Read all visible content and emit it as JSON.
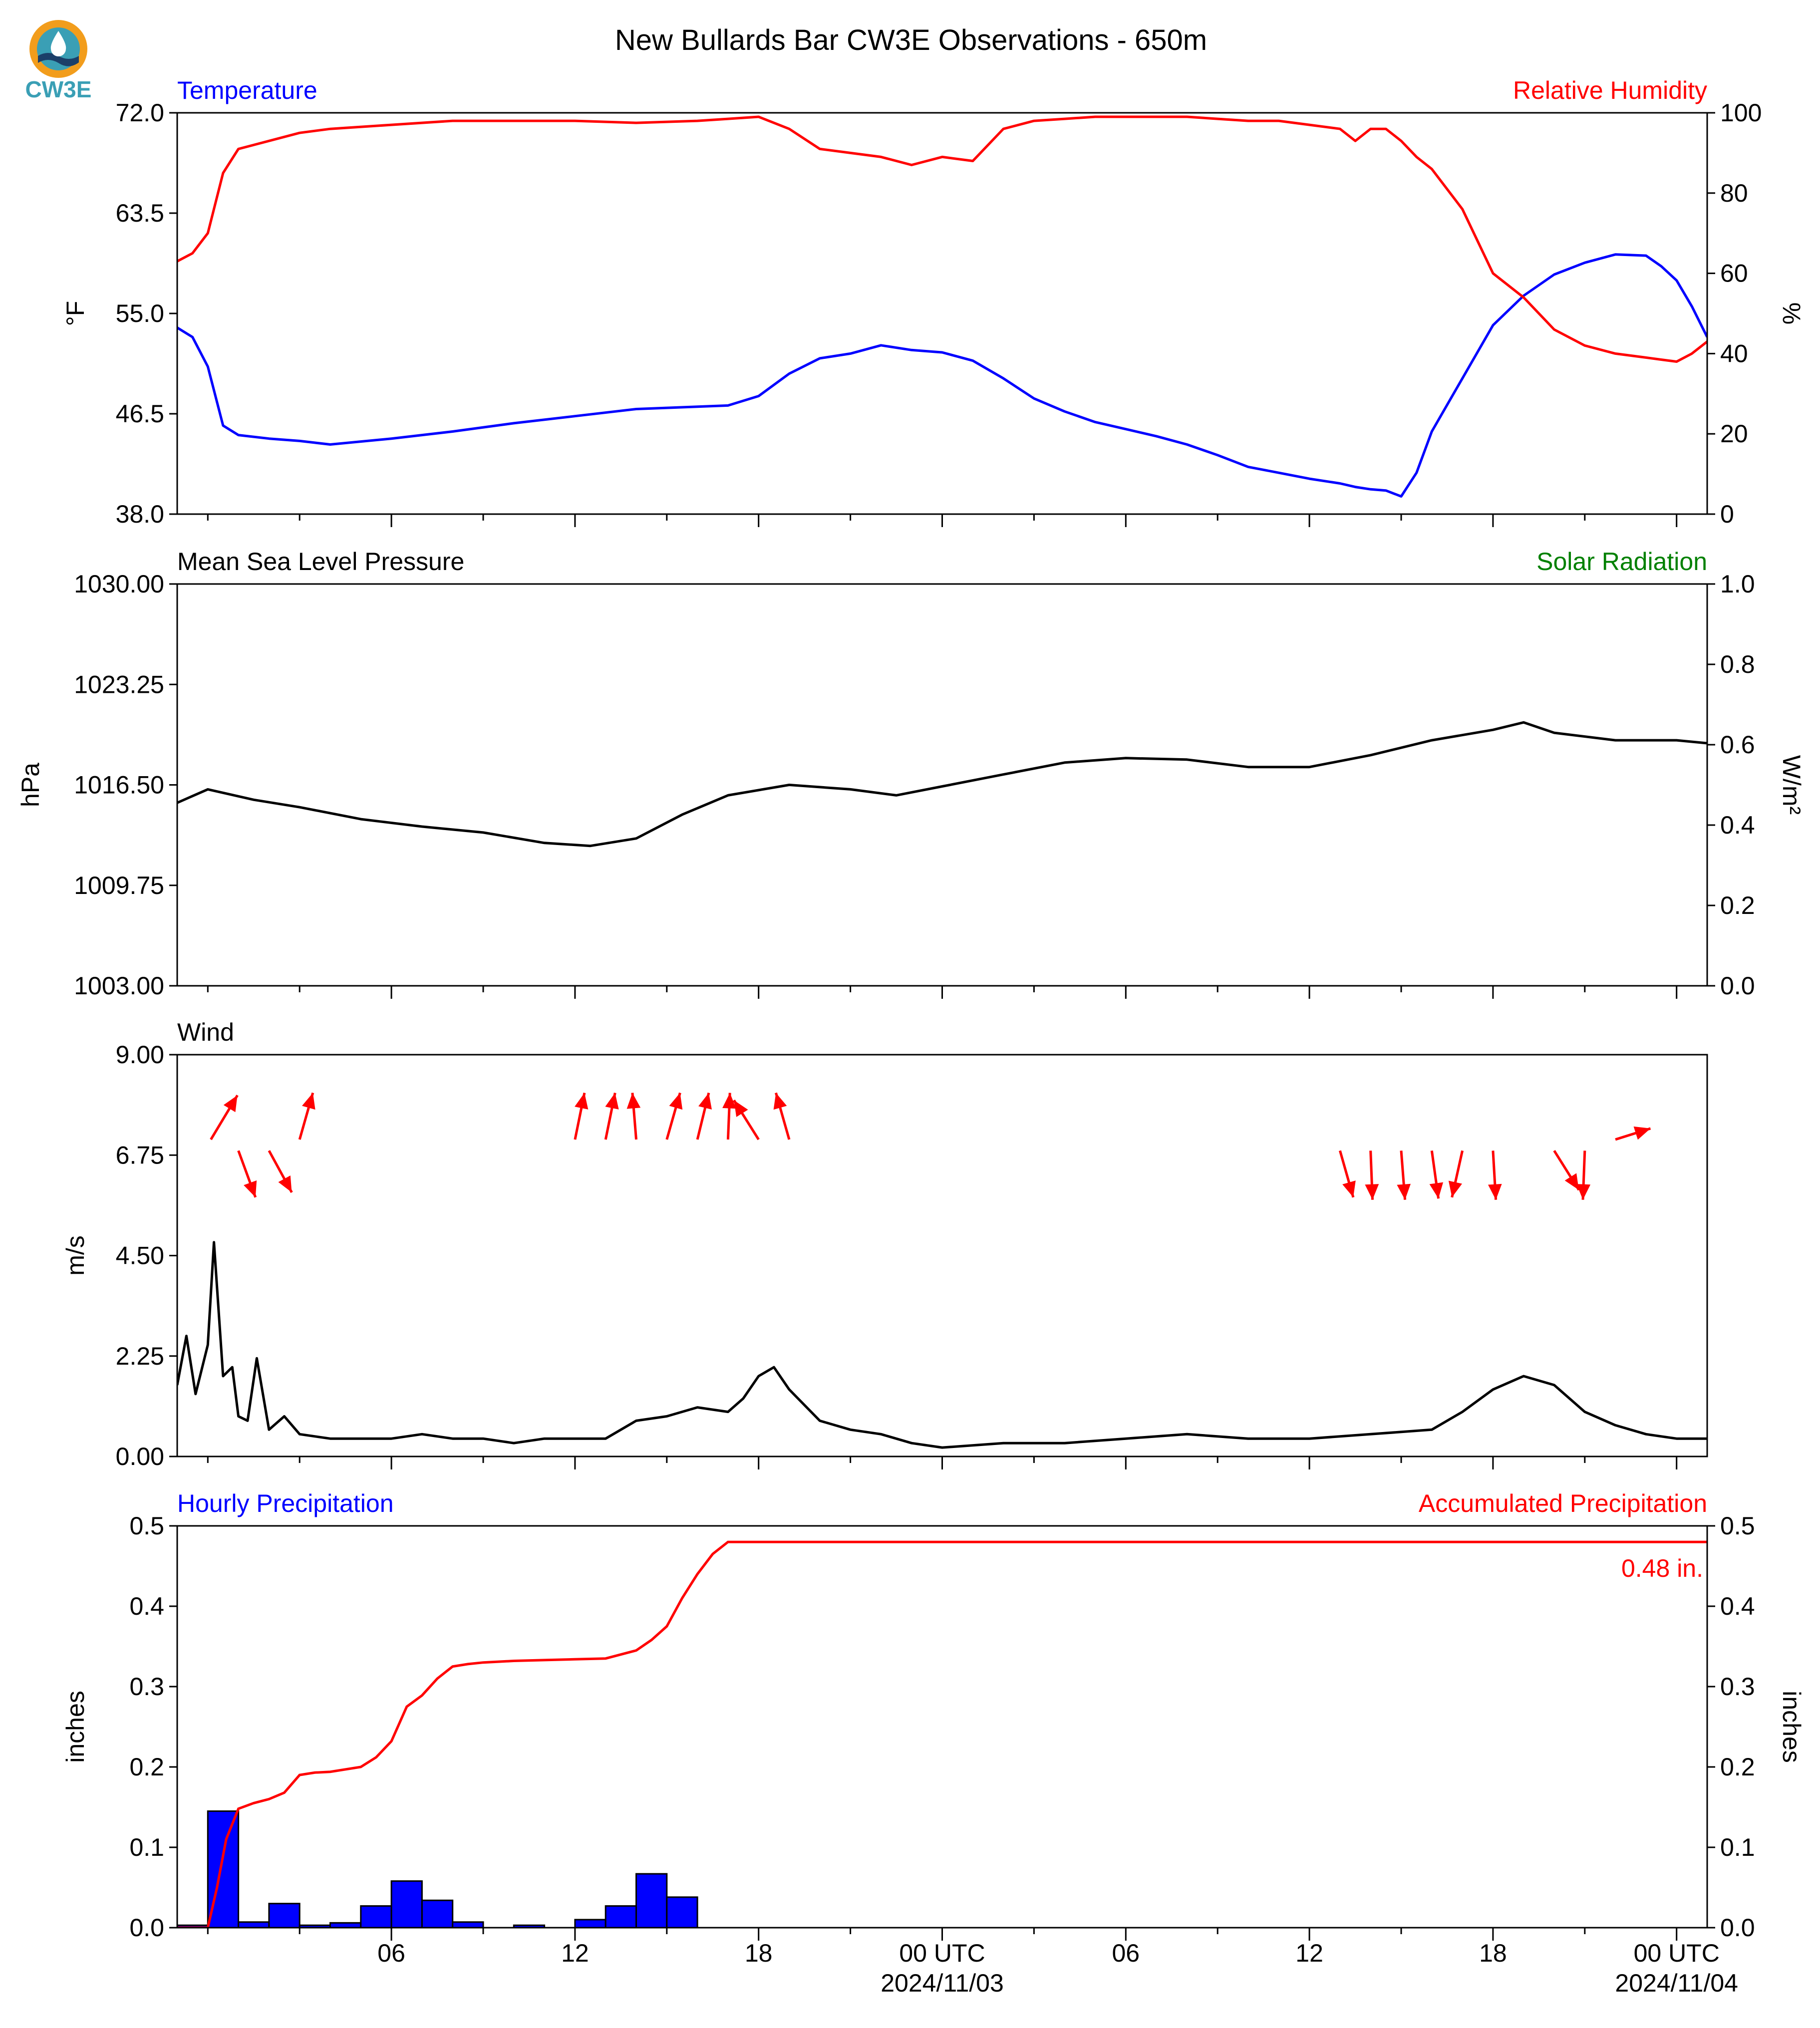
{
  "logo": {
    "label": "CW3E",
    "colors": [
      "#3a9fb5",
      "#f29d1c",
      "#1b3f69"
    ]
  },
  "title": "New Bullards Bar CW3E Observations - 650m",
  "x_axis": {
    "ticks": [
      {
        "hour": 6,
        "label": "06",
        "sub": ""
      },
      {
        "hour": 12,
        "label": "12",
        "sub": ""
      },
      {
        "hour": 18,
        "label": "18",
        "sub": ""
      },
      {
        "hour": 24,
        "label": "00 UTC",
        "sub": "2024/11/03"
      },
      {
        "hour": 30,
        "label": "06",
        "sub": ""
      },
      {
        "hour": 36,
        "label": "12",
        "sub": ""
      },
      {
        "hour": 42,
        "label": "18",
        "sub": ""
      },
      {
        "hour": 48,
        "label": "00 UTC",
        "sub": "2024/11/04"
      }
    ],
    "minor_hours": [
      0,
      3,
      9,
      15,
      21,
      27,
      33,
      39,
      45
    ]
  },
  "chart_data": [
    {
      "type": "line",
      "panel": "temperature-humidity",
      "left_title": "Temperature",
      "left_title_color": "#0000ff",
      "right_title": "Relative Humidity",
      "right_title_color": "#ff0000",
      "ylabel": "°F",
      "y2label": "%",
      "ylim": [
        38.0,
        72.0
      ],
      "yticks": [
        "72.0",
        "63.5",
        "55.0",
        "46.5",
        "38.0"
      ],
      "y2lim": [
        0,
        100
      ],
      "y2ticks": [
        "100",
        "80",
        "60",
        "40",
        "20",
        "0"
      ],
      "x": [
        -1.0,
        -0.5,
        0.0,
        0.5,
        1.0,
        2.0,
        3.0,
        4.0,
        6.0,
        8.0,
        10.0,
        12.0,
        14.0,
        16.0,
        17.0,
        18.0,
        19.0,
        20.0,
        21.0,
        22.0,
        23.0,
        24.0,
        25.0,
        26.0,
        27.0,
        28.0,
        29.0,
        30.0,
        31.0,
        32.0,
        33.0,
        34.0,
        35.0,
        36.0,
        37.0,
        37.5,
        38.0,
        38.5,
        39.0,
        39.5,
        40.0,
        41.0,
        42.0,
        43.0,
        44.0,
        45.0,
        46.0,
        47.0,
        47.5,
        48.0,
        48.5,
        49.0
      ],
      "series": [
        {
          "name": "Temperature",
          "color": "#0000ff",
          "axis": "left",
          "values": [
            53.8,
            53.0,
            50.5,
            45.5,
            44.7,
            44.4,
            44.2,
            43.9,
            44.4,
            45.0,
            45.7,
            46.3,
            46.9,
            47.1,
            47.2,
            48.0,
            49.9,
            51.2,
            51.6,
            52.3,
            51.9,
            51.7,
            51.0,
            49.5,
            47.8,
            46.7,
            45.8,
            45.2,
            44.6,
            43.9,
            43.0,
            42.0,
            41.5,
            41.0,
            40.6,
            40.3,
            40.1,
            40.0,
            39.5,
            41.5,
            45.0,
            49.5,
            54.0,
            56.5,
            58.3,
            59.3,
            60.0,
            59.9,
            59.0,
            57.8,
            55.6,
            53.0
          ]
        },
        {
          "name": "Relative Humidity",
          "color": "#ff0000",
          "axis": "right",
          "values": [
            63,
            65,
            70,
            85,
            91,
            93,
            95,
            96,
            97,
            98,
            98,
            98,
            97.5,
            98,
            98.5,
            99,
            96,
            91,
            90,
            89,
            87,
            89,
            88,
            96,
            98,
            98.5,
            99,
            99,
            99,
            99,
            98.5,
            98,
            98,
            97,
            96,
            93,
            96,
            96,
            93,
            89,
            86,
            76,
            60,
            54,
            46,
            42,
            40,
            39,
            38.5,
            38,
            40,
            43
          ]
        }
      ]
    },
    {
      "type": "line",
      "panel": "pressure-solar",
      "left_title": "Mean Sea Level Pressure",
      "left_title_color": "#000000",
      "right_title": "Solar Radiation",
      "right_title_color": "#008000",
      "ylabel": "hPa",
      "y2label": "W/m²",
      "ylim": [
        1003.0,
        1030.0
      ],
      "yticks": [
        "1030.00",
        "1023.25",
        "1016.50",
        "1009.75",
        "1003.00"
      ],
      "y2lim": [
        0.0,
        1.0
      ],
      "y2ticks": [
        "1.0",
        "0.8",
        "0.6",
        "0.4",
        "0.2",
        "0.0"
      ],
      "x": [
        -1.0,
        0.0,
        1.5,
        3.0,
        5.0,
        7.0,
        9.0,
        11.0,
        12.5,
        14.0,
        15.5,
        17.0,
        19.0,
        21.0,
        22.5,
        24.0,
        26.0,
        28.0,
        30.0,
        32.0,
        34.0,
        36.0,
        38.0,
        40.0,
        42.0,
        43.0,
        44.0,
        46.0,
        48.0,
        49.0
      ],
      "series": [
        {
          "name": "Pressure",
          "color": "#000000",
          "axis": "left",
          "values": [
            1015.3,
            1016.2,
            1015.5,
            1015.0,
            1014.2,
            1013.7,
            1013.3,
            1012.6,
            1012.4,
            1012.9,
            1014.5,
            1015.8,
            1016.5,
            1016.2,
            1015.8,
            1016.4,
            1017.2,
            1018.0,
            1018.3,
            1018.2,
            1017.7,
            1017.7,
            1018.5,
            1019.5,
            1020.2,
            1020.7,
            1020.0,
            1019.5,
            1019.5,
            1019.3
          ]
        }
      ]
    },
    {
      "type": "line",
      "panel": "wind",
      "left_title": "Wind",
      "left_title_color": "#000000",
      "ylabel": "m/s",
      "ylim": [
        0.0,
        9.0
      ],
      "yticks": [
        "9.00",
        "6.75",
        "4.50",
        "2.25",
        "0.00"
      ],
      "x": [
        -1.0,
        -0.7,
        -0.4,
        0.0,
        0.2,
        0.5,
        0.8,
        1.0,
        1.3,
        1.6,
        2.0,
        2.5,
        3.0,
        4.0,
        5.0,
        6.0,
        7.0,
        8.0,
        9.0,
        10.0,
        11.0,
        12.0,
        13.0,
        14.0,
        15.0,
        16.0,
        17.0,
        17.5,
        18.0,
        18.5,
        19.0,
        20.0,
        21.0,
        22.0,
        23.0,
        24.0,
        26.0,
        28.0,
        30.0,
        32.0,
        34.0,
        36.0,
        38.0,
        40.0,
        41.0,
        42.0,
        43.0,
        44.0,
        45.0,
        46.0,
        47.0,
        48.0,
        49.0
      ],
      "series": [
        {
          "name": "Wind Speed",
          "color": "#000000",
          "axis": "left",
          "values": [
            1.6,
            2.7,
            1.4,
            2.5,
            4.8,
            1.8,
            2.0,
            0.9,
            0.8,
            2.2,
            0.6,
            0.9,
            0.5,
            0.4,
            0.4,
            0.4,
            0.5,
            0.4,
            0.4,
            0.3,
            0.4,
            0.4,
            0.4,
            0.8,
            0.9,
            1.1,
            1.0,
            1.3,
            1.8,
            2.0,
            1.5,
            0.8,
            0.6,
            0.5,
            0.3,
            0.2,
            0.3,
            0.3,
            0.4,
            0.5,
            0.4,
            0.4,
            0.5,
            0.6,
            1.0,
            1.5,
            1.8,
            1.6,
            1.0,
            0.7,
            0.5,
            0.4,
            0.4
          ]
        }
      ],
      "arrows": [
        {
          "x": 0.1,
          "y": 7.1,
          "dx": 1.4,
          "dy": 1.8
        },
        {
          "x": 1.0,
          "y": 6.85,
          "dx": 0.9,
          "dy": -1.9
        },
        {
          "x": 2.0,
          "y": 6.85,
          "dx": 1.2,
          "dy": -1.7
        },
        {
          "x": 3.0,
          "y": 7.1,
          "dx": 0.7,
          "dy": 1.9
        },
        {
          "x": 12.0,
          "y": 7.1,
          "dx": 0.5,
          "dy": 1.9
        },
        {
          "x": 13.0,
          "y": 7.1,
          "dx": 0.5,
          "dy": 1.9
        },
        {
          "x": 14.0,
          "y": 7.1,
          "dx": -0.2,
          "dy": 1.9
        },
        {
          "x": 15.0,
          "y": 7.1,
          "dx": 0.7,
          "dy": 1.9
        },
        {
          "x": 16.0,
          "y": 7.1,
          "dx": 0.6,
          "dy": 1.9
        },
        {
          "x": 17.0,
          "y": 7.1,
          "dx": 0.1,
          "dy": 1.9
        },
        {
          "x": 18.0,
          "y": 7.1,
          "dx": -1.3,
          "dy": 1.6
        },
        {
          "x": 19.0,
          "y": 7.1,
          "dx": -0.7,
          "dy": 1.9
        },
        {
          "x": 37.0,
          "y": 6.85,
          "dx": 0.7,
          "dy": -1.9
        },
        {
          "x": 38.0,
          "y": 6.85,
          "dx": 0.1,
          "dy": -2.0
        },
        {
          "x": 39.0,
          "y": 6.85,
          "dx": 0.2,
          "dy": -2.0
        },
        {
          "x": 40.0,
          "y": 6.85,
          "dx": 0.35,
          "dy": -1.95
        },
        {
          "x": 41.0,
          "y": 6.85,
          "dx": -0.55,
          "dy": -1.9
        },
        {
          "x": 42.0,
          "y": 6.85,
          "dx": 0.15,
          "dy": -2.0
        },
        {
          "x": 44.0,
          "y": 6.85,
          "dx": 1.3,
          "dy": -1.6
        },
        {
          "x": 45.0,
          "y": 6.85,
          "dx": -0.1,
          "dy": -2.0
        },
        {
          "x": 46.0,
          "y": 7.1,
          "dx": 1.85,
          "dy": 0.45
        }
      ]
    },
    {
      "type": "bar",
      "panel": "precipitation",
      "left_title": "Hourly Precipitation",
      "left_title_color": "#0000ff",
      "right_title": "Accumulated Precipitation",
      "right_title_color": "#ff0000",
      "ylabel": "inches",
      "y2label": "inches",
      "ylim": [
        0.0,
        0.5
      ],
      "yticks": [
        "0.5",
        "0.4",
        "0.3",
        "0.2",
        "0.1",
        "0.0"
      ],
      "y2lim": [
        0.0,
        0.5
      ],
      "y2ticks": [
        "0.5",
        "0.4",
        "0.3",
        "0.2",
        "0.1",
        "0.0"
      ],
      "bar_hours": [
        -1,
        0,
        1,
        2,
        3,
        4,
        5,
        6,
        7,
        8,
        9,
        10,
        11,
        12,
        13,
        14,
        15,
        16
      ],
      "bar_values": [
        0.003,
        0.145,
        0.007,
        0.03,
        0.003,
        0.006,
        0.027,
        0.058,
        0.034,
        0.007,
        0,
        0.003,
        0,
        0.01,
        0.027,
        0.067,
        0.038,
        0
      ],
      "bar_color": "#0000ff",
      "accum_x": [
        -1.0,
        0.0,
        0.3,
        0.6,
        1.0,
        1.5,
        2.0,
        2.5,
        3.0,
        3.5,
        4.0,
        5.0,
        5.5,
        6.0,
        6.5,
        7.0,
        7.5,
        8.0,
        8.5,
        9.0,
        9.5,
        10.0,
        11.0,
        12.0,
        13.0,
        14.0,
        14.5,
        15.0,
        15.5,
        16.0,
        16.5,
        17.0,
        48.0,
        49.0
      ],
      "accum_values": [
        0.0,
        0.0,
        0.05,
        0.11,
        0.148,
        0.155,
        0.16,
        0.168,
        0.19,
        0.193,
        0.194,
        0.2,
        0.212,
        0.232,
        0.275,
        0.289,
        0.31,
        0.325,
        0.328,
        0.33,
        0.331,
        0.332,
        0.333,
        0.334,
        0.335,
        0.345,
        0.358,
        0.375,
        0.41,
        0.44,
        0.465,
        0.48,
        0.48,
        0.48
      ],
      "accum_color": "#ff0000",
      "annotation": "0.48 in."
    }
  ]
}
